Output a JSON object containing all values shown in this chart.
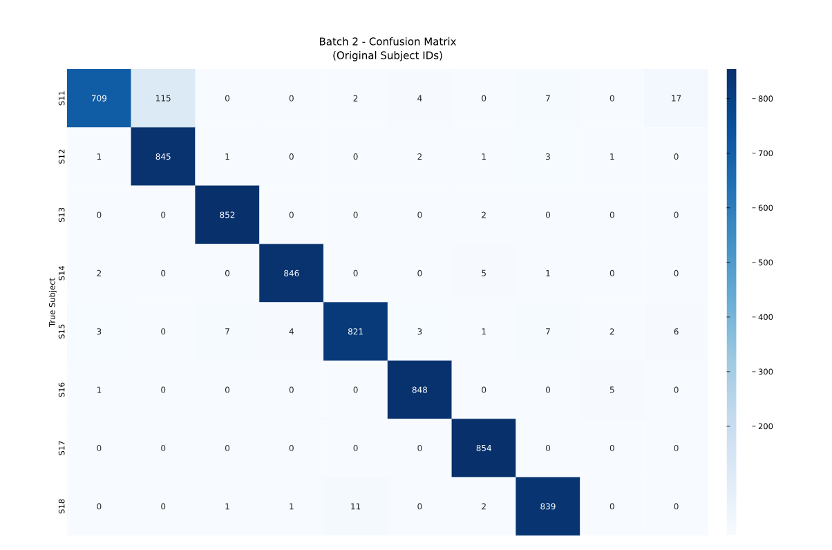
{
  "chart_data": {
    "type": "heatmap",
    "title": "Batch 2 - Confusion Matrix",
    "subtitle": "(Original Subject IDs)",
    "ylabel": "True Subject",
    "categories": [
      null,
      null,
      null,
      null,
      null,
      null,
      null,
      null,
      null,
      null
    ],
    "y_categories": [
      "S11",
      "S12",
      "S13",
      "S14",
      "S15",
      "S16",
      "S17",
      "S18"
    ],
    "cells": [
      [
        709,
        115,
        0,
        0,
        2,
        4,
        0,
        7,
        0,
        17
      ],
      [
        1,
        845,
        1,
        0,
        0,
        2,
        1,
        3,
        1,
        0
      ],
      [
        0,
        0,
        852,
        0,
        0,
        0,
        2,
        0,
        0,
        0
      ],
      [
        2,
        0,
        0,
        846,
        0,
        0,
        5,
        1,
        0,
        0
      ],
      [
        3,
        0,
        7,
        4,
        821,
        3,
        1,
        7,
        2,
        6
      ],
      [
        1,
        0,
        0,
        0,
        0,
        848,
        0,
        0,
        5,
        0
      ],
      [
        0,
        0,
        0,
        0,
        0,
        0,
        854,
        0,
        0,
        0
      ],
      [
        0,
        0,
        1,
        1,
        11,
        0,
        2,
        839,
        0,
        0
      ]
    ],
    "data_labels": true,
    "clim": [
      0,
      854
    ],
    "cticks": [
      200,
      300,
      400,
      500,
      600,
      700,
      800
    ]
  }
}
